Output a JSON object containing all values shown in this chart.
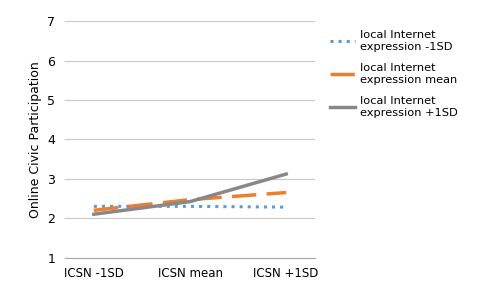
{
  "x_labels": [
    "ICSN -1SD",
    "ICSN mean",
    "ICSN +1SD"
  ],
  "x_positions": [
    0,
    1,
    2
  ],
  "line_minus1sd": [
    2.3,
    2.3,
    2.28
  ],
  "line_mean": [
    2.2,
    2.47,
    2.65
  ],
  "line_plus1sd": [
    2.1,
    2.42,
    3.12
  ],
  "color_minus1sd": "#5B9BD5",
  "color_mean": "#ED7D31",
  "color_plus1sd": "#888888",
  "ylabel": "Online Civic Participation",
  "ylim": [
    1,
    7
  ],
  "yticks": [
    1,
    2,
    3,
    4,
    5,
    6,
    7
  ],
  "legend_labels": [
    "local Internet\nexpression -1SD",
    "local Internet\nexpression mean",
    "local Internet\nexpression +1SD"
  ],
  "background_color": "#ffffff",
  "grid_color": "#c8c8c8"
}
